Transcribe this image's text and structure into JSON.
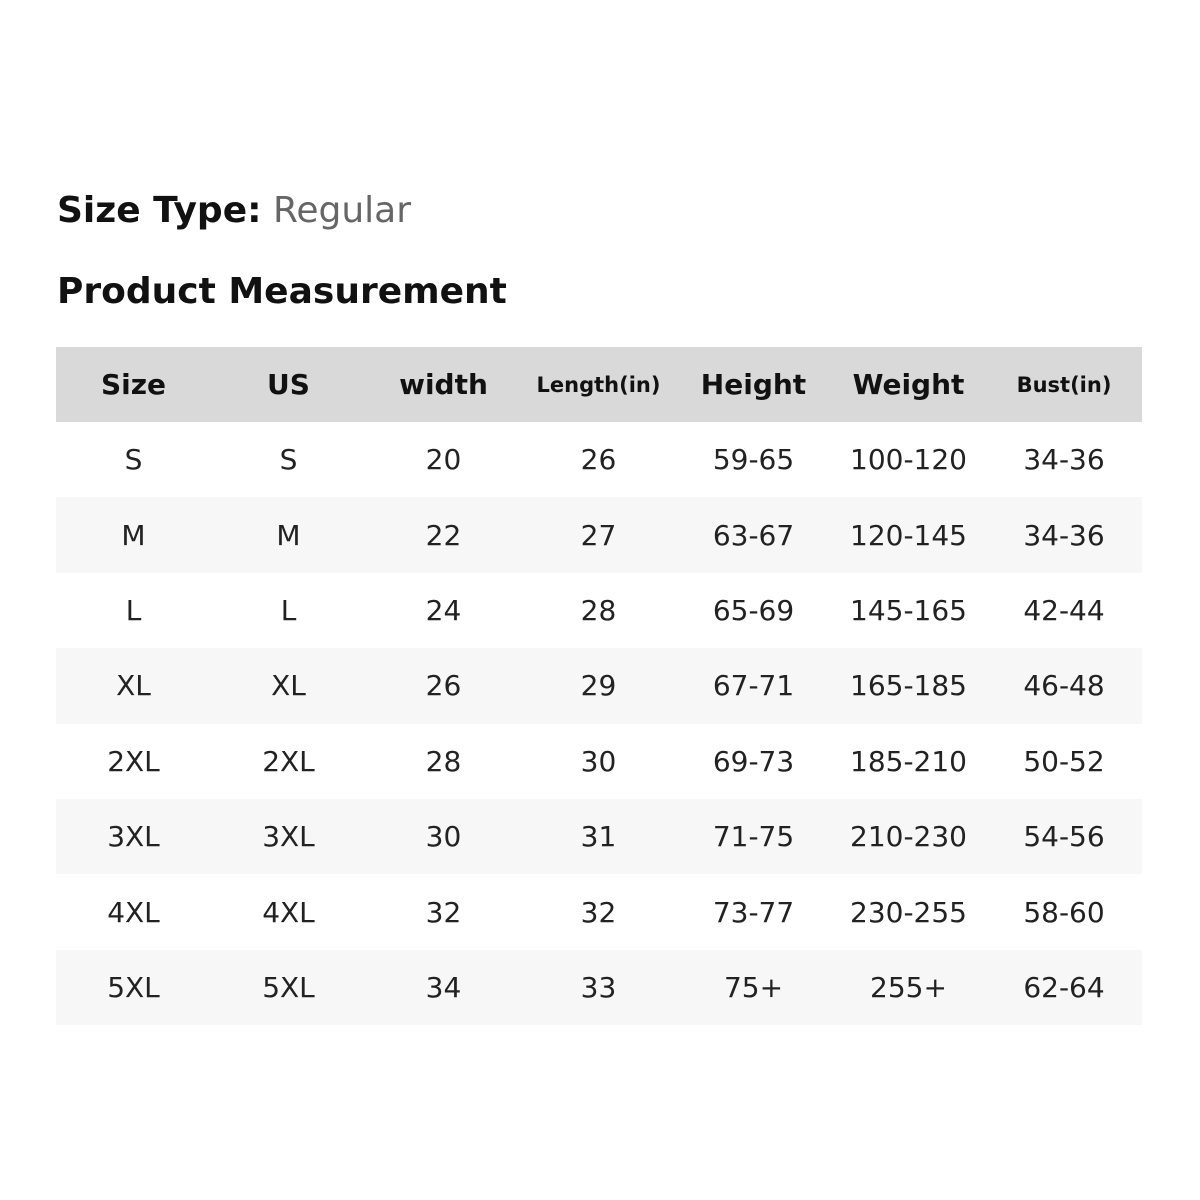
{
  "size_type": {
    "label": "Size Type:",
    "value": "Regular"
  },
  "section_title": "Product Measurement",
  "table": {
    "headers": [
      "Size",
      "US",
      "width",
      "Length(in)",
      "Height",
      "Weight",
      "Bust(in)"
    ],
    "rows": [
      [
        "S",
        "S",
        "20",
        "26",
        "59-65",
        "100-120",
        "34-36"
      ],
      [
        "M",
        "M",
        "22",
        "27",
        "63-67",
        "120-145",
        "34-36"
      ],
      [
        "L",
        "L",
        "24",
        "28",
        "65-69",
        "145-165",
        "42-44"
      ],
      [
        "XL",
        "XL",
        "26",
        "29",
        "67-71",
        "165-185",
        "46-48"
      ],
      [
        "2XL",
        "2XL",
        "28",
        "30",
        "69-73",
        "185-210",
        "50-52"
      ],
      [
        "3XL",
        "3XL",
        "30",
        "31",
        "71-75",
        "210-230",
        "54-56"
      ],
      [
        "4XL",
        "4XL",
        "32",
        "32",
        "73-77",
        "230-255",
        "58-60"
      ],
      [
        "5XL",
        "5XL",
        "34",
        "33",
        "75+",
        "255+",
        "62-64"
      ]
    ]
  },
  "colors": {
    "header_background": "#d9d9d9",
    "alternate_row_background": "#f7f7f7",
    "label_text": "#111111",
    "muted_text": "#666666"
  }
}
